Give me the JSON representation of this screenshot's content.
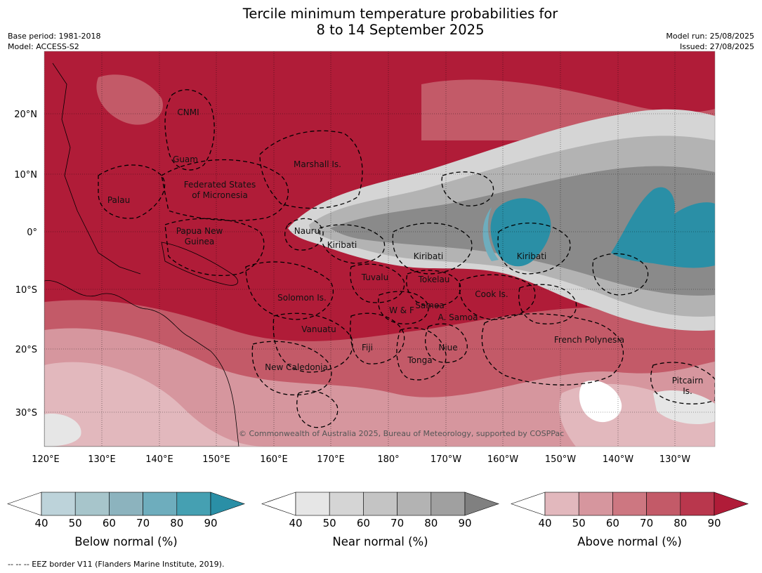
{
  "title": {
    "line1": "Tercile minimum temperature probabilities for",
    "line2": "8 to 14 September 2025"
  },
  "meta": {
    "base_period": "Base period: 1981-2018",
    "model": "Model: ACCESS-S2",
    "model_run": "Model run: 25/08/2025",
    "issued": "Issued: 27/08/2025"
  },
  "axes": {
    "lat_ticks": [
      "20°N",
      "10°N",
      "0°",
      "10°S",
      "20°S",
      "30°S"
    ],
    "lon_ticks": [
      "120°E",
      "130°E",
      "140°E",
      "150°E",
      "160°E",
      "170°E",
      "180°",
      "170°W",
      "160°W",
      "150°W",
      "140°W",
      "130°W"
    ]
  },
  "regions": [
    "CNMI",
    "Guam",
    "Marshall Is.",
    "Palau",
    "Federated States",
    "of Micronesia",
    "Papua New",
    "Guinea",
    "Nauru",
    "Kiribati",
    "Kiribati",
    "Kiribati",
    "Tuvalu",
    "Tokelau",
    "Cook Is.",
    "Solomon Is.",
    "W & F",
    "Samoa",
    "A. Samoa",
    "Vanuatu",
    "Fiji",
    "Niue",
    "Tonga",
    "French Polynesia",
    "New Caledonia",
    "Pitcairn",
    "Is."
  ],
  "copyright": "© Commonwealth of Australia 2025, Bureau of Meteorology, supported by COSPPac",
  "colorbars": [
    {
      "label": "Below normal (%)",
      "ticks": [
        "40",
        "50",
        "60",
        "70",
        "80",
        "90"
      ],
      "colors": [
        "#ffffff",
        "#bdd3da",
        "#a7c5cb",
        "#8cb3be",
        "#6eadbd",
        "#45a0b2",
        "#2a8fa6"
      ]
    },
    {
      "label": "Near normal (%)",
      "ticks": [
        "40",
        "50",
        "60",
        "70",
        "80",
        "90"
      ],
      "colors": [
        "#ffffff",
        "#e6e6e6",
        "#d5d5d5",
        "#c4c4c4",
        "#b3b3b3",
        "#a0a0a0",
        "#808080"
      ]
    },
    {
      "label": "Above normal (%)",
      "ticks": [
        "40",
        "50",
        "60",
        "70",
        "80",
        "90"
      ],
      "colors": [
        "#ffffff",
        "#e2b8bd",
        "#d6969e",
        "#cd7781",
        "#c35a68",
        "#b9374d",
        "#b01c38"
      ]
    }
  ],
  "footer": "--  --  -- EEZ border V11 (Flanders Marine Institute, 2019)."
}
